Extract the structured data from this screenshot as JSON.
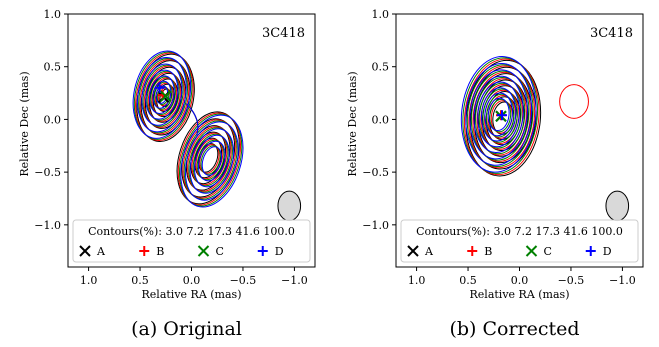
{
  "chart_data": [
    {
      "type": "contour",
      "source": "3C418",
      "xlabel": "Relative RA (mas)",
      "ylabel": "Relative Dec (mas)",
      "xlim": [
        1.2,
        -1.2
      ],
      "ylim": [
        -1.4,
        1.0
      ],
      "xticks": [
        "1.0",
        "0.5",
        "0.0",
        "−0.5",
        "−1.0"
      ],
      "yticks": [
        "1.0",
        "0.5",
        "0.0",
        "−0.5",
        "−1.0"
      ],
      "contour_levels_text": "Contours(%): 3.0 7.2 17.3 41.6 100.0",
      "contour_levels": [
        3.0,
        7.2,
        17.3,
        41.6,
        100.0
      ],
      "caption": "(a) Original",
      "markers": [
        {
          "name": "A",
          "color": "#000000",
          "x": 0.27,
          "y": 0.21
        },
        {
          "name": "B",
          "color": "#ff0000",
          "x": 0.28,
          "y": 0.23
        },
        {
          "name": "C",
          "color": "#008000",
          "x": 0.25,
          "y": 0.22
        },
        {
          "name": "D",
          "color": "#0000ff",
          "x": 0.31,
          "y": 0.3
        }
      ],
      "beam": {
        "x": -0.95,
        "y": -0.82,
        "w": 0.22,
        "h": 0.28
      }
    },
    {
      "type": "contour",
      "source": "3C418",
      "xlabel": "Relative RA (mas)",
      "ylabel": "Relative Dec (mas)",
      "xlim": [
        1.2,
        -1.2
      ],
      "ylim": [
        -1.4,
        1.0
      ],
      "xticks": [
        "1.0",
        "0.5",
        "0.0",
        "−0.5",
        "−1.0"
      ],
      "yticks": [
        "1.0",
        "0.5",
        "0.0",
        "−0.5",
        "−1.0"
      ],
      "contour_levels_text": "Contours(%): 3.0 7.2 17.3 41.6 100.0",
      "contour_levels": [
        3.0,
        7.2,
        17.3,
        41.6,
        100.0
      ],
      "caption": "(b) Corrected",
      "markers": [
        {
          "name": "A",
          "color": "#000000",
          "x": 0.18,
          "y": 0.03
        },
        {
          "name": "B",
          "color": "#ff0000",
          "x": 0.18,
          "y": 0.04
        },
        {
          "name": "C",
          "color": "#008000",
          "x": 0.18,
          "y": 0.03
        },
        {
          "name": "D",
          "color": "#0000ff",
          "x": 0.17,
          "y": 0.04
        }
      ],
      "beam": {
        "x": -0.95,
        "y": -0.82,
        "w": 0.22,
        "h": 0.28
      }
    }
  ],
  "legend_labels": [
    "A",
    "B",
    "C",
    "D"
  ]
}
